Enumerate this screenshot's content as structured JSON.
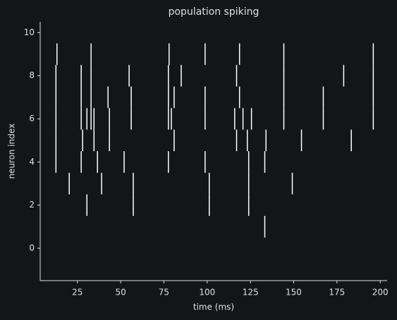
{
  "chart_data": {
    "type": "eventplot",
    "title": "population spiking",
    "xlabel": "time (ms)",
    "ylabel": "neuron index",
    "lineoffsets": [
      0,
      1,
      2,
      3,
      4,
      5,
      6,
      7,
      8,
      9
    ],
    "linelength": 1,
    "color": "#ffffff",
    "events": [
      [],
      [
        133.3
      ],
      [
        30.5,
        57.3,
        101.2,
        124
      ],
      [
        20.3,
        39,
        57.3,
        101.2,
        124,
        149.2
      ],
      [
        12.6,
        27.2,
        36.6,
        52,
        77.6,
        98.8,
        124,
        133.3
      ],
      [
        12.6,
        28,
        34.6,
        43.5,
        80.9,
        117,
        123.2,
        134,
        154.5,
        183.3
      ],
      [
        12.6,
        27.2,
        30.5,
        32.9,
        34.6,
        43.5,
        56.1,
        77.6,
        79.3,
        98.8,
        115.9,
        120.7,
        125.6,
        144.3,
        167.1,
        196
      ],
      [
        12.6,
        27.2,
        32.9,
        42.7,
        56.1,
        77.6,
        80.9,
        98.8,
        118.7,
        144.3,
        167.1,
        196
      ],
      [
        12.6,
        27.2,
        32.9,
        54.9,
        77.6,
        85,
        117,
        144.3,
        178.9,
        196
      ],
      [
        13.2,
        32.9,
        78,
        98.8,
        118.7,
        144.3,
        196
      ]
    ],
    "xlim": [
      3.5,
      204
    ],
    "ylim": [
      -1.5,
      10.5
    ],
    "xticks": [
      25,
      50,
      75,
      100,
      125,
      150,
      175,
      200
    ],
    "yticks": [
      0,
      2,
      4,
      6,
      8,
      10
    ]
  }
}
